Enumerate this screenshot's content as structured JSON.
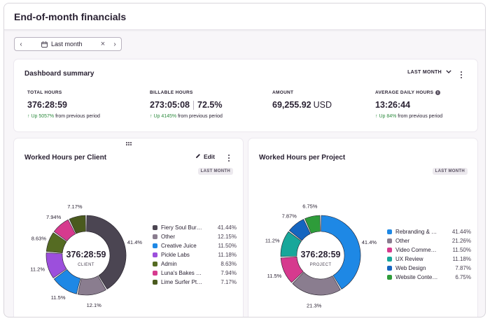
{
  "page": {
    "title": "End-of-month financials"
  },
  "date_range": {
    "label": "Last month",
    "prev_icon": "chevron-left-icon",
    "next_icon": "chevron-right-icon",
    "calendar_icon": "calendar-icon",
    "clear_icon": "close-icon"
  },
  "summary": {
    "title": "Dashboard summary",
    "range": "LAST MONTH",
    "metrics": {
      "total_hours": {
        "label": "TOTAL HOURS",
        "value": "376:28:59",
        "change_up": "Up 5057%",
        "change_rest": " from previous period"
      },
      "billable_hours": {
        "label": "BILLABLE HOURS",
        "value": "273:05:08",
        "value_pct": "72.5%",
        "change_up": "Up 4145%",
        "change_rest": " from previous period"
      },
      "amount": {
        "label": "AMOUNT",
        "value": "69,255.92",
        "unit": "USD"
      },
      "avg_daily": {
        "label": "AVERAGE DAILY HOURS",
        "value": "13:26:44",
        "change_up": "Up 84%",
        "change_rest": " from previous period"
      }
    }
  },
  "client_panel": {
    "title": "Worked Hours per Client",
    "edit_label": "Edit",
    "badge": "LAST MONTH",
    "center_value": "376:28:59",
    "center_label": "CLIENT"
  },
  "project_panel": {
    "title": "Worked Hours per Project",
    "badge": "LAST MONTH",
    "center_value": "376:28:59",
    "center_label": "PROJECT"
  },
  "chart_data": [
    {
      "type": "pie",
      "title": "Worked Hours per Client",
      "categories": [
        "Fiery Soul Bur…",
        "Other",
        "Creative Juice",
        "Pickle Labs",
        "Admin",
        "Luna's Bakes …",
        "Lime Surfer Pt…"
      ],
      "values": [
        41.44,
        12.15,
        11.5,
        11.18,
        8.63,
        7.94,
        7.17
      ],
      "legend_values": [
        "41.44%",
        "12.15%",
        "11.50%",
        "11.18%",
        "8.63%",
        "7.94%",
        "7.17%"
      ],
      "slice_labels": [
        "41.4%",
        "12.1%",
        "11.5%",
        "11.2%",
        "8.63%",
        "7.94%",
        "7.17%"
      ],
      "colors": [
        "#4b4552",
        "#8a7d8f",
        "#1e88e5",
        "#9c4fdc",
        "#556b22",
        "#d63a8e",
        "#4a5a1e"
      ],
      "legend_placement": "right"
    },
    {
      "type": "pie",
      "title": "Worked Hours per Project",
      "categories": [
        "Rebranding & …",
        "Other",
        "Video Comme…",
        "UX Review",
        "Web Design",
        "Website Conte…"
      ],
      "values": [
        41.44,
        21.26,
        11.5,
        11.18,
        7.87,
        6.75
      ],
      "legend_values": [
        "41.44%",
        "21.26%",
        "11.50%",
        "11.18%",
        "7.87%",
        "6.75%"
      ],
      "slice_labels": [
        "41.4%",
        "21.3%",
        "11.5%",
        "11.2%",
        "7.87%",
        "6.75%"
      ],
      "colors": [
        "#1e88e5",
        "#8a7d8f",
        "#d63a8e",
        "#18a79a",
        "#1565c0",
        "#2e9c3a"
      ],
      "legend_placement": "right"
    }
  ]
}
